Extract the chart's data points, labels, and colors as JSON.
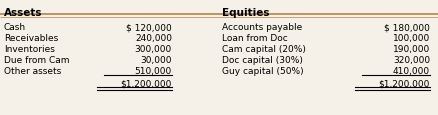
{
  "assets_header": "Assets",
  "equities_header": "Equities",
  "assets_labels": [
    "Cash",
    "Receivables",
    "Inventories",
    "Due from Cam",
    "Other assets",
    ""
  ],
  "assets_values": [
    "$ 120,000",
    "240,000",
    "300,000",
    "30,000",
    "510,000",
    "$1,200,000"
  ],
  "equities_labels": [
    "Accounts payable",
    "Loan from Doc",
    "Cam capital (20%)",
    "Doc capital (30%)",
    "Guy capital (50%)",
    ""
  ],
  "equities_values": [
    "$ 180,000",
    "100,000",
    "190,000",
    "320,000",
    "410,000",
    "$1,200,000"
  ],
  "header_line_color": "#b5834a",
  "bg_color": "#f5f0e8",
  "font_size": 6.5,
  "header_font_size": 7.5
}
